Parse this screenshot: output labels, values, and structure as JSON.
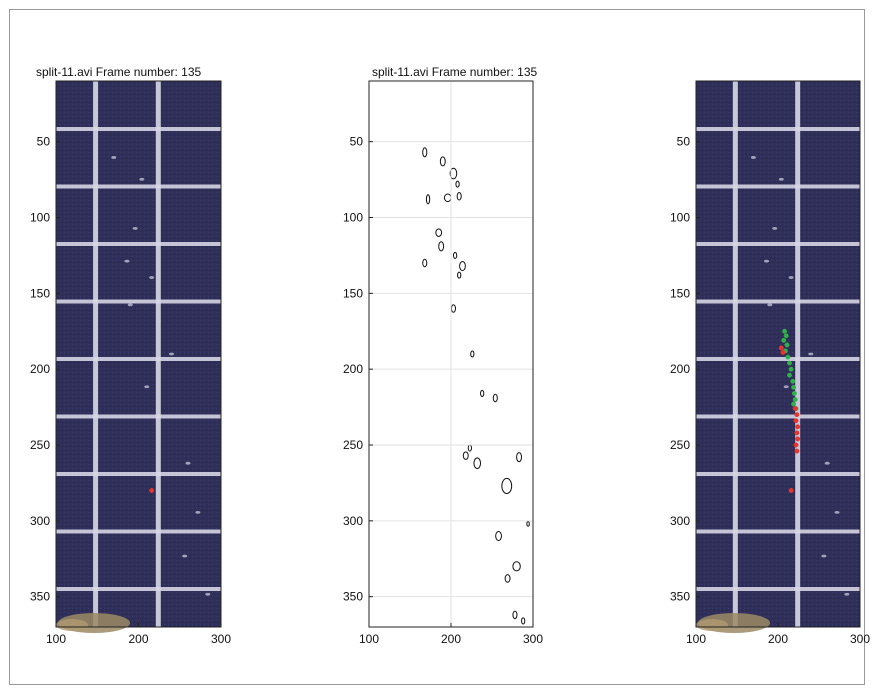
{
  "chart_data": [
    {
      "type": "image-plot",
      "title": "split-11.avi  Frame number: 135",
      "xlim": [
        100,
        300
      ],
      "ylim": [
        370,
        10
      ],
      "xticks": [
        100,
        200,
        300
      ],
      "yticks": [
        50,
        100,
        150,
        200,
        250,
        300,
        350
      ],
      "background": "dark-tile-video-frame",
      "markers": [
        {
          "name": "",
          "color": "#e8342a",
          "points": [
            [
              216,
              280
            ]
          ]
        }
      ]
    },
    {
      "type": "contour",
      "title": "split-11.avi  Frame number: 135",
      "xlim": [
        100,
        300
      ],
      "ylim": [
        370,
        10
      ],
      "xticks": [
        100,
        200,
        300
      ],
      "yticks": [
        50,
        100,
        150,
        200,
        250,
        300,
        350
      ],
      "grid": true,
      "blobs": [
        [
          168,
          57,
          2.5,
          3
        ],
        [
          190,
          63,
          3,
          3
        ],
        [
          203,
          71,
          4,
          3.5
        ],
        [
          208,
          78,
          2,
          2
        ],
        [
          172,
          88,
          2,
          3
        ],
        [
          196,
          87,
          4,
          2.5
        ],
        [
          210,
          86,
          2.5,
          2.5
        ],
        [
          185,
          110,
          3.5,
          2.5
        ],
        [
          188,
          119,
          3,
          3
        ],
        [
          205,
          125,
          2,
          2
        ],
        [
          214,
          132,
          3.5,
          3
        ],
        [
          210,
          138,
          2,
          2
        ],
        [
          168,
          130,
          2.5,
          2.5
        ],
        [
          203,
          160,
          2.5,
          2.5
        ],
        [
          226,
          190,
          2,
          2
        ],
        [
          238,
          216,
          2,
          2
        ],
        [
          254,
          219,
          2.5,
          2.5
        ],
        [
          223,
          252,
          2,
          2
        ],
        [
          218,
          257,
          3,
          2.5
        ],
        [
          232,
          262,
          4,
          3.5
        ],
        [
          283,
          258,
          3,
          3
        ],
        [
          268,
          277,
          6,
          5
        ],
        [
          258,
          310,
          3.5,
          3
        ],
        [
          294,
          302,
          1.5,
          1.5
        ],
        [
          280,
          330,
          4.5,
          3
        ],
        [
          269,
          338,
          3,
          2.5
        ],
        [
          278,
          362,
          2.5,
          2.5
        ],
        [
          288,
          366,
          2,
          2
        ]
      ]
    },
    {
      "type": "image-plot",
      "title": "",
      "xlim": [
        100,
        300
      ],
      "ylim": [
        370,
        10
      ],
      "xticks": [
        100,
        200,
        300
      ],
      "yticks": [
        50,
        100,
        150,
        200,
        250,
        300,
        350
      ],
      "background": "dark-tile-video-frame",
      "markers": [
        {
          "name": "",
          "color": "#2fb24a",
          "points": [
            [
              208,
              175
            ],
            [
              210,
              178
            ],
            [
              207,
              181
            ],
            [
              211,
              184
            ],
            [
              209,
              188
            ],
            [
              212,
              192
            ],
            [
              214,
              196
            ],
            [
              216,
              200
            ],
            [
              214,
              204
            ],
            [
              218,
              208
            ],
            [
              219,
              212
            ],
            [
              220,
              216
            ],
            [
              221,
              220
            ],
            [
              219,
              223
            ],
            [
              222,
              226
            ]
          ]
        },
        {
          "name": "",
          "color": "#e8342a",
          "points": [
            [
              204,
              186
            ],
            [
              206,
              189
            ],
            [
              221,
              226
            ],
            [
              223,
              230
            ],
            [
              222,
              234
            ],
            [
              224,
              238
            ],
            [
              223,
              242
            ],
            [
              224,
              246
            ],
            [
              222,
              250
            ],
            [
              223,
              254
            ],
            [
              216,
              280
            ]
          ]
        }
      ]
    }
  ]
}
